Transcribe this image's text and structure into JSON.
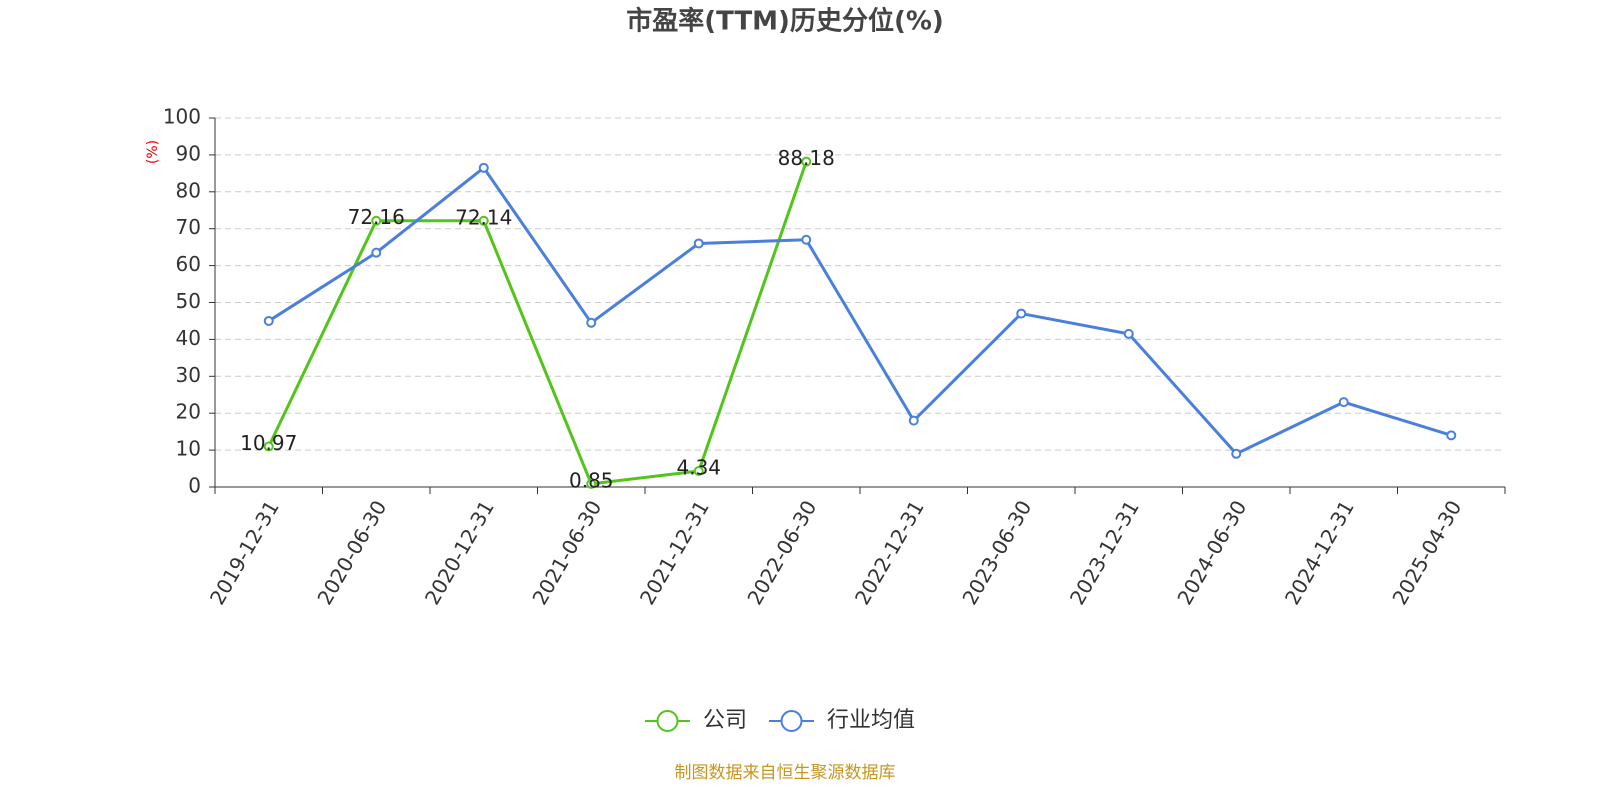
{
  "chart_data": {
    "type": "line",
    "title": "市盈率(TTM)历史分位(%)",
    "y_label": "(%)",
    "source": "制图数据来自恒生聚源数据库",
    "categories": [
      "2019-12-31",
      "2020-06-30",
      "2020-12-31",
      "2021-06-30",
      "2021-12-31",
      "2022-06-30",
      "2022-12-31",
      "2023-06-30",
      "2023-12-31",
      "2024-06-30",
      "2024-12-31",
      "2025-04-30"
    ],
    "series": [
      {
        "name": "公司",
        "color": "#52c41a",
        "show_labels": true,
        "values": [
          10.97,
          72.16,
          72.14,
          0.85,
          4.34,
          88.18,
          null,
          null,
          null,
          null,
          null,
          null
        ]
      },
      {
        "name": "行业均值",
        "color": "#4a7fdc",
        "show_labels": false,
        "values": [
          45,
          63.5,
          86.5,
          44.5,
          66,
          67,
          18,
          47,
          41.5,
          9,
          23,
          14
        ]
      }
    ],
    "ylim": [
      0,
      100
    ],
    "yticks": [
      0,
      10,
      20,
      30,
      40,
      50,
      60,
      70,
      80,
      90,
      100
    ],
    "grid": true
  }
}
